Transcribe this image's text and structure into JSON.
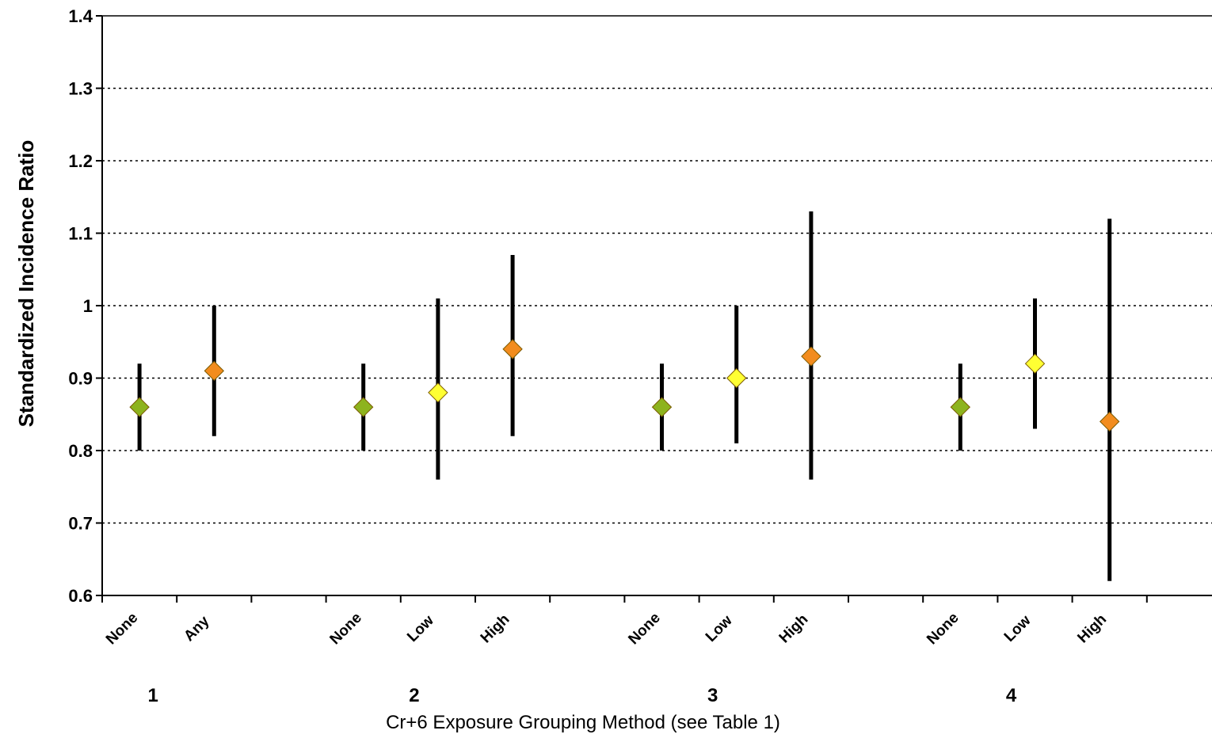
{
  "chart_data": {
    "type": "scatter",
    "ylabel": "Standardized Incidence Ratio",
    "xlabel": "Cr+6 Exposure Grouping Method (see Table 1)",
    "ylim": [
      0.6,
      1.4
    ],
    "yticks": [
      "0.6",
      "0.7",
      "0.8",
      "0.9",
      "1",
      "1.1",
      "1.2",
      "1.3",
      "1.4"
    ],
    "grid": "horizontal dotted",
    "legend": "none",
    "colors": {
      "None": "#8DB31E",
      "Any": "#F28C1E",
      "Low": "#FFFF33",
      "High": "#F28C1E",
      "error_bar": "#000000"
    },
    "groups": [
      {
        "label": "1",
        "points": [
          {
            "category": "None",
            "value": 0.86,
            "lower": 0.8,
            "upper": 0.92
          },
          {
            "category": "Any",
            "value": 0.91,
            "lower": 0.82,
            "upper": 1.0
          }
        ]
      },
      {
        "label": "2",
        "points": [
          {
            "category": "None",
            "value": 0.86,
            "lower": 0.8,
            "upper": 0.92
          },
          {
            "category": "Low",
            "value": 0.88,
            "lower": 0.76,
            "upper": 1.01
          },
          {
            "category": "High",
            "value": 0.94,
            "lower": 0.82,
            "upper": 1.07
          }
        ]
      },
      {
        "label": "3",
        "points": [
          {
            "category": "None",
            "value": 0.86,
            "lower": 0.8,
            "upper": 0.92
          },
          {
            "category": "Low",
            "value": 0.9,
            "lower": 0.81,
            "upper": 1.0
          },
          {
            "category": "High",
            "value": 0.93,
            "lower": 0.76,
            "upper": 1.13
          }
        ]
      },
      {
        "label": "4",
        "points": [
          {
            "category": "None",
            "value": 0.86,
            "lower": 0.8,
            "upper": 0.92
          },
          {
            "category": "Low",
            "value": 0.92,
            "lower": 0.83,
            "upper": 1.01
          },
          {
            "category": "High",
            "value": 0.84,
            "lower": 0.62,
            "upper": 1.12
          }
        ]
      }
    ]
  }
}
